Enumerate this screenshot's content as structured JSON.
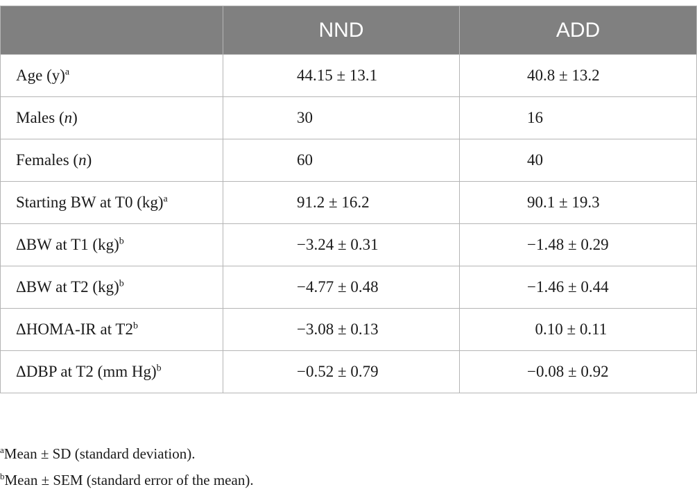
{
  "table": {
    "header": [
      "",
      "NND",
      "ADD"
    ],
    "rows": [
      {
        "label": "Age (y)",
        "italic": "",
        "label_suffix": "",
        "sup": "a",
        "nnd": "44.15 ± 13.1",
        "add": "40.8 ± 13.2"
      },
      {
        "label": "Males (",
        "italic": "n",
        "label_suffix": ")",
        "sup": "",
        "nnd": "30",
        "add": "16"
      },
      {
        "label": "Females (",
        "italic": "n",
        "label_suffix": ")",
        "sup": "",
        "nnd": "60",
        "add": "40"
      },
      {
        "label": "Starting BW at T0 (kg)",
        "italic": "",
        "label_suffix": "",
        "sup": "a",
        "nnd": "91.2 ± 16.2",
        "add": "90.1 ± 19.3"
      },
      {
        "label": "ΔBW at T1 (kg)",
        "italic": "",
        "label_suffix": "",
        "sup": "b",
        "nnd": "−3.24 ± 0.31",
        "add": "−1.48 ± 0.29"
      },
      {
        "label": "ΔBW at T2 (kg)",
        "italic": "",
        "label_suffix": "",
        "sup": "b",
        "nnd": "−4.77 ± 0.48",
        "add": "−1.46 ± 0.44"
      },
      {
        "label": "ΔHOMA-IR at T2",
        "italic": "",
        "label_suffix": "",
        "sup": "b",
        "nnd": "−3.08 ± 0.13",
        "add": "  0.10 ± 0.11"
      },
      {
        "label": "ΔDBP at T2 (mm Hg)",
        "italic": "",
        "label_suffix": "",
        "sup": "b",
        "nnd": "−0.52 ± 0.79",
        "add": "−0.08 ± 0.92"
      }
    ]
  },
  "footnotes": [
    {
      "mark": "a",
      "text": "Mean ± SD (standard deviation)."
    },
    {
      "mark": "b",
      "text": "Mean ± SEM (standard error of the mean)."
    }
  ]
}
